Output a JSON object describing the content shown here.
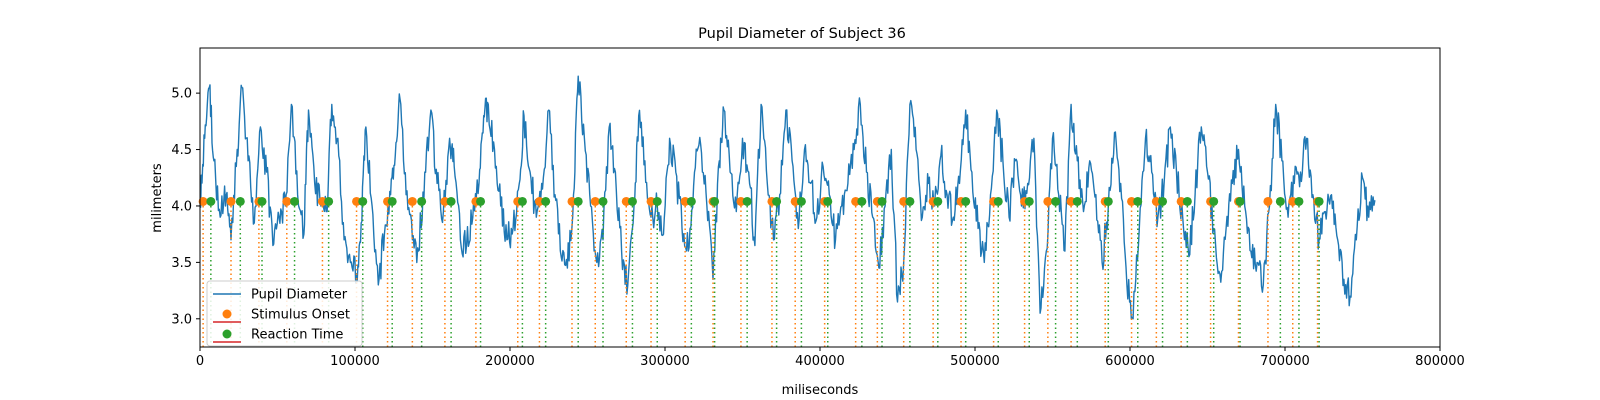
{
  "chart_data": {
    "type": "line",
    "title": "Pupil Diameter of Subject 36",
    "xlabel": "miliseconds",
    "ylabel": "milimeters",
    "xlim": [
      0,
      800000
    ],
    "ylim": [
      2.75,
      5.4
    ],
    "xticks": [
      0,
      100000,
      200000,
      300000,
      400000,
      500000,
      600000,
      700000,
      800000
    ],
    "xtick_labels": [
      "0",
      "100000",
      "200000",
      "300000",
      "400000",
      "500000",
      "600000",
      "700000",
      "800000"
    ],
    "yticks": [
      3.0,
      3.5,
      4.0,
      4.5,
      5.0
    ],
    "ytick_labels": [
      "3.0",
      "3.5",
      "4.0",
      "4.5",
      "5.0"
    ],
    "grid": false,
    "legend_placement": "lower-left",
    "colors": {
      "pupil": "#1f77b4",
      "stimulus": "#ff7f0e",
      "reaction": "#2ca02c",
      "legend_stem": "#d62728"
    },
    "series": [
      {
        "name": "Pupil Diameter",
        "kind": "line",
        "x_end": 758000,
        "keypoints": [
          [
            0,
            4.05
          ],
          [
            3000,
            4.6
          ],
          [
            6000,
            5.05
          ],
          [
            9000,
            4.4
          ],
          [
            13000,
            3.9
          ],
          [
            17000,
            4.1
          ],
          [
            20000,
            3.7
          ],
          [
            24000,
            4.5
          ],
          [
            27000,
            5.05
          ],
          [
            31000,
            4.4
          ],
          [
            35000,
            3.85
          ],
          [
            39000,
            4.7
          ],
          [
            43000,
            4.3
          ],
          [
            47000,
            3.65
          ],
          [
            51000,
            3.9
          ],
          [
            55000,
            4.0
          ],
          [
            59000,
            4.9
          ],
          [
            63000,
            4.1
          ],
          [
            67000,
            3.75
          ],
          [
            70000,
            4.85
          ],
          [
            74000,
            4.2
          ],
          [
            78000,
            4.0
          ],
          [
            82000,
            3.95
          ],
          [
            85000,
            4.9
          ],
          [
            89000,
            4.6
          ],
          [
            93000,
            3.7
          ],
          [
            97000,
            3.5
          ],
          [
            101000,
            3.4
          ],
          [
            104000,
            3.85
          ],
          [
            107000,
            4.7
          ],
          [
            111000,
            4.0
          ],
          [
            115000,
            3.3
          ],
          [
            119000,
            3.75
          ],
          [
            123000,
            4.1
          ],
          [
            126000,
            4.45
          ],
          [
            129000,
            4.95
          ],
          [
            133000,
            4.1
          ],
          [
            137000,
            3.7
          ],
          [
            141000,
            3.6
          ],
          [
            145000,
            4.3
          ],
          [
            149000,
            4.85
          ],
          [
            153000,
            4.2
          ],
          [
            157000,
            3.95
          ],
          [
            161000,
            4.6
          ],
          [
            164000,
            4.35
          ],
          [
            168000,
            3.7
          ],
          [
            172000,
            3.65
          ],
          [
            176000,
            3.9
          ],
          [
            180000,
            4.2
          ],
          [
            183000,
            4.8
          ],
          [
            186000,
            4.9
          ],
          [
            190000,
            4.5
          ],
          [
            194000,
            4.0
          ],
          [
            198000,
            3.7
          ],
          [
            202000,
            3.8
          ],
          [
            206000,
            4.2
          ],
          [
            209000,
            4.8
          ],
          [
            213000,
            4.3
          ],
          [
            217000,
            3.9
          ],
          [
            221000,
            4.15
          ],
          [
            225000,
            4.85
          ],
          [
            229000,
            4.1
          ],
          [
            233000,
            3.55
          ],
          [
            237000,
            3.45
          ],
          [
            241000,
            4.1
          ],
          [
            244000,
            5.15
          ],
          [
            248000,
            4.6
          ],
          [
            252000,
            4.0
          ],
          [
            256000,
            3.5
          ],
          [
            260000,
            3.7
          ],
          [
            264000,
            4.7
          ],
          [
            268000,
            4.3
          ],
          [
            272000,
            3.6
          ],
          [
            276000,
            3.3
          ],
          [
            280000,
            4.0
          ],
          [
            283000,
            4.8
          ],
          [
            287000,
            4.4
          ],
          [
            291000,
            3.9
          ],
          [
            295000,
            4.0
          ],
          [
            299000,
            3.75
          ],
          [
            303000,
            4.6
          ],
          [
            307000,
            4.3
          ],
          [
            311000,
            3.8
          ],
          [
            315000,
            3.6
          ],
          [
            319000,
            4.3
          ],
          [
            323000,
            4.55
          ],
          [
            327000,
            4.0
          ],
          [
            331000,
            3.35
          ],
          [
            335000,
            4.4
          ],
          [
            338000,
            4.85
          ],
          [
            342000,
            4.3
          ],
          [
            346000,
            3.95
          ],
          [
            350000,
            4.6
          ],
          [
            354000,
            4.3
          ],
          [
            358000,
            3.65
          ],
          [
            362000,
            4.9
          ],
          [
            366000,
            4.2
          ],
          [
            370000,
            3.7
          ],
          [
            374000,
            4.1
          ],
          [
            378000,
            4.85
          ],
          [
            382000,
            4.4
          ],
          [
            386000,
            3.8
          ],
          [
            390000,
            4.5
          ],
          [
            394000,
            4.2
          ],
          [
            398000,
            3.9
          ],
          [
            402000,
            4.35
          ],
          [
            406000,
            4.1
          ],
          [
            410000,
            3.7
          ],
          [
            414000,
            4.0
          ],
          [
            418000,
            4.2
          ],
          [
            422000,
            4.5
          ],
          [
            426000,
            4.9
          ],
          [
            430000,
            4.3
          ],
          [
            434000,
            3.9
          ],
          [
            438000,
            3.45
          ],
          [
            442000,
            4.0
          ],
          [
            446000,
            4.5
          ],
          [
            450000,
            3.15
          ],
          [
            454000,
            3.5
          ],
          [
            458000,
            4.9
          ],
          [
            462000,
            4.5
          ],
          [
            466000,
            3.9
          ],
          [
            470000,
            4.2
          ],
          [
            474000,
            4.0
          ],
          [
            478000,
            4.45
          ],
          [
            482000,
            4.1
          ],
          [
            486000,
            3.9
          ],
          [
            490000,
            4.2
          ],
          [
            494000,
            4.85
          ],
          [
            498000,
            4.3
          ],
          [
            502000,
            3.8
          ],
          [
            506000,
            3.5
          ],
          [
            510000,
            4.1
          ],
          [
            514000,
            4.85
          ],
          [
            518000,
            4.4
          ],
          [
            522000,
            3.9
          ],
          [
            526000,
            4.4
          ],
          [
            530000,
            4.0
          ],
          [
            534000,
            4.2
          ],
          [
            538000,
            4.6
          ],
          [
            542000,
            3.05
          ],
          [
            546000,
            3.6
          ],
          [
            550000,
            4.6
          ],
          [
            554000,
            4.1
          ],
          [
            558000,
            3.6
          ],
          [
            562000,
            4.9
          ],
          [
            566000,
            4.4
          ],
          [
            570000,
            3.95
          ],
          [
            574000,
            4.4
          ],
          [
            578000,
            4.1
          ],
          [
            582000,
            3.5
          ],
          [
            586000,
            4.0
          ],
          [
            590000,
            4.65
          ],
          [
            594000,
            4.2
          ],
          [
            598000,
            3.3
          ],
          [
            602000,
            3.0
          ],
          [
            606000,
            3.8
          ],
          [
            610000,
            4.6
          ],
          [
            614000,
            4.3
          ],
          [
            618000,
            3.9
          ],
          [
            622000,
            4.2
          ],
          [
            626000,
            4.7
          ],
          [
            630000,
            4.3
          ],
          [
            634000,
            3.9
          ],
          [
            638000,
            3.55
          ],
          [
            642000,
            4.1
          ],
          [
            646000,
            4.7
          ],
          [
            650000,
            4.3
          ],
          [
            654000,
            3.8
          ],
          [
            658000,
            3.4
          ],
          [
            662000,
            3.8
          ],
          [
            666000,
            4.2
          ],
          [
            670000,
            4.5
          ],
          [
            674000,
            4.0
          ],
          [
            678000,
            3.6
          ],
          [
            682000,
            3.5
          ],
          [
            686000,
            3.3
          ],
          [
            690000,
            4.0
          ],
          [
            694000,
            4.9
          ],
          [
            698000,
            4.4
          ],
          [
            702000,
            3.9
          ],
          [
            706000,
            4.2
          ],
          [
            710000,
            4.3
          ],
          [
            714000,
            4.6
          ],
          [
            718000,
            4.1
          ],
          [
            722000,
            3.7
          ],
          [
            726000,
            3.95
          ],
          [
            730000,
            4.1
          ],
          [
            734000,
            3.7
          ],
          [
            738000,
            3.35
          ],
          [
            742000,
            3.2
          ],
          [
            746000,
            3.7
          ],
          [
            750000,
            4.25
          ],
          [
            754000,
            3.9
          ],
          [
            758000,
            4.05
          ]
        ]
      },
      {
        "name": "Stimulus Onset",
        "kind": "stem",
        "y": 4.04,
        "x": [
          2000,
          20000,
          38000,
          56000,
          79000,
          101000,
          121000,
          137000,
          158000,
          178000,
          205000,
          219000,
          240000,
          255000,
          275000,
          291000,
          313000,
          331000,
          349000,
          369000,
          384000,
          403000,
          423000,
          437000,
          454000,
          473000,
          491000,
          512000,
          532000,
          547000,
          562000,
          584000,
          601000,
          617000,
          633000,
          652000,
          670000,
          689000,
          705000,
          721000
        ]
      },
      {
        "name": "Reaction Time",
        "kind": "stem",
        "y": 4.04,
        "x": [
          7000,
          26000,
          40000,
          61000,
          83000,
          105000,
          124000,
          143000,
          162000,
          181000,
          208000,
          223000,
          244000,
          260000,
          279000,
          295000,
          317000,
          332000,
          353000,
          372000,
          388000,
          405000,
          427000,
          440000,
          458000,
          476000,
          494000,
          515000,
          535000,
          552000,
          566000,
          586000,
          605000,
          621000,
          637000,
          654000,
          671000,
          697000,
          709000,
          722000
        ]
      }
    ]
  }
}
